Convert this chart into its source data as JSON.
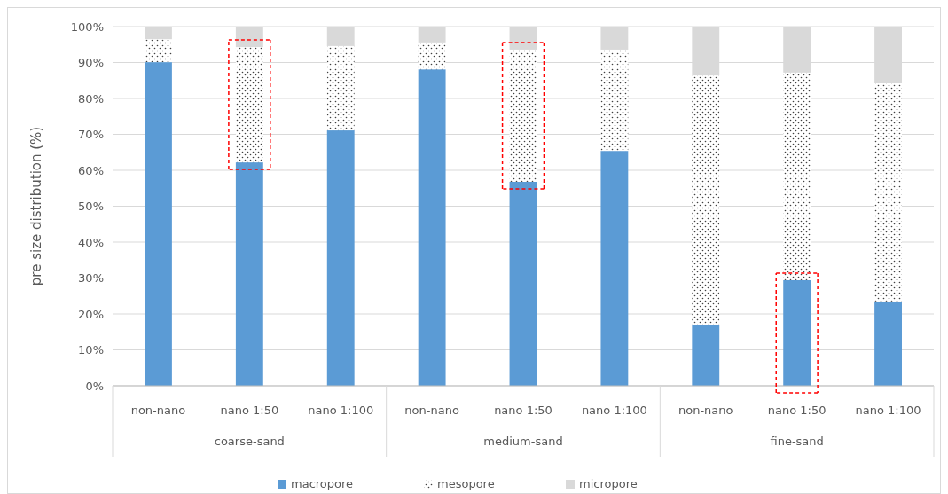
{
  "chart_data": {
    "type": "bar",
    "stacked": true,
    "ylabel": "pre size distribution (%)",
    "categories": [
      "non-nano",
      "nano 1:50",
      "nano 1:100",
      "non-nano",
      "nano 1:50",
      "nano 1:100",
      "non-nano",
      "nano 1:50",
      "nano 1:100"
    ],
    "annotations": [
      "coarse-sand",
      "medium-sand",
      "fine-sand"
    ],
    "series": [
      {
        "name": "macropore",
        "color": "#5b9bd5",
        "values": [
          90.1,
          62.2,
          71.1,
          88.1,
          56.8,
          65.4,
          17.0,
          29.4,
          23.5
        ]
      },
      {
        "name": "mesopore",
        "color": "#404040",
        "values": [
          6.4,
          32.1,
          23.5,
          7.5,
          36.8,
          28.2,
          69.4,
          57.8,
          60.7
        ]
      },
      {
        "name": "micropore",
        "color": "#d9d9d9",
        "values": [
          3.5,
          5.7,
          5.4,
          4.4,
          6.4,
          6.4,
          13.6,
          12.8,
          15.8
        ]
      }
    ],
    "ylim": [
      0,
      100
    ],
    "yticks": [
      {
        "value": 0,
        "label": "0%"
      },
      {
        "value": 10,
        "label": "10%"
      },
      {
        "value": 20,
        "label": "20%"
      },
      {
        "value": 30,
        "label": "30%"
      },
      {
        "value": 40,
        "label": "40%"
      },
      {
        "value": 50,
        "label": "50%"
      },
      {
        "value": 60,
        "label": "60%"
      },
      {
        "value": 70,
        "label": "70%"
      },
      {
        "value": 80,
        "label": "80%"
      },
      {
        "value": 90,
        "label": "90%"
      },
      {
        "value": 100,
        "label": "100%"
      }
    ],
    "grid": "y",
    "legend": "bottom"
  }
}
